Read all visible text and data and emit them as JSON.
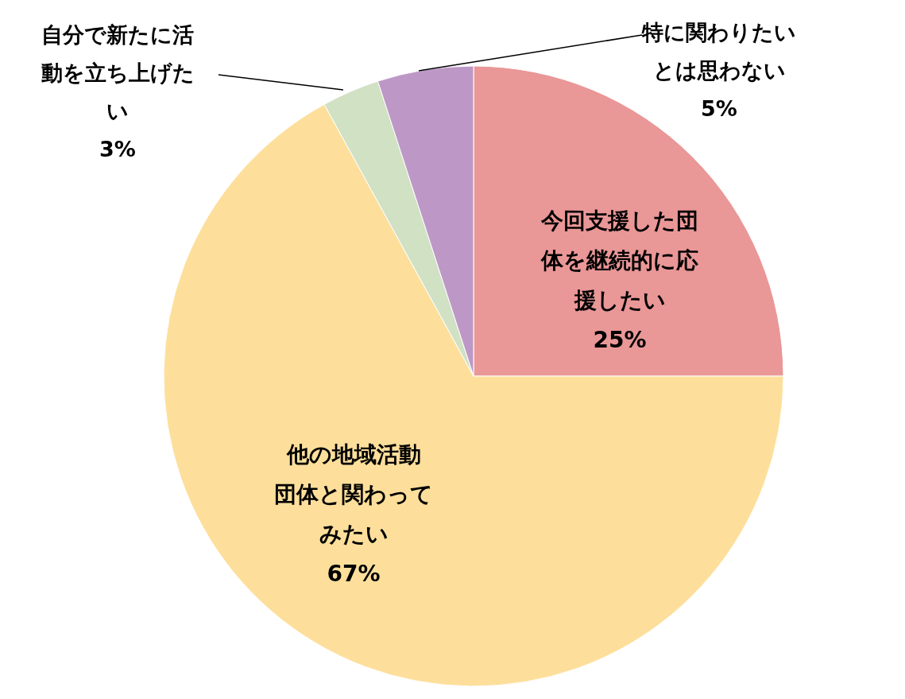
{
  "chart_data": {
    "type": "pie",
    "categories": [
      "今回支援した団体を継続的に応援したい",
      "他の地域活動団体と関わってみたい",
      "自分で新たに活動を立ち上げたい",
      "特に関わりたいとは思わない"
    ],
    "values": [
      25,
      67,
      3,
      5
    ],
    "colors": [
      "#ea9797",
      "#fddf9b",
      "#d0e1c4",
      "#bd98c6"
    ],
    "value_labels": [
      "25%",
      "67%",
      "3%",
      "5%"
    ]
  }
}
